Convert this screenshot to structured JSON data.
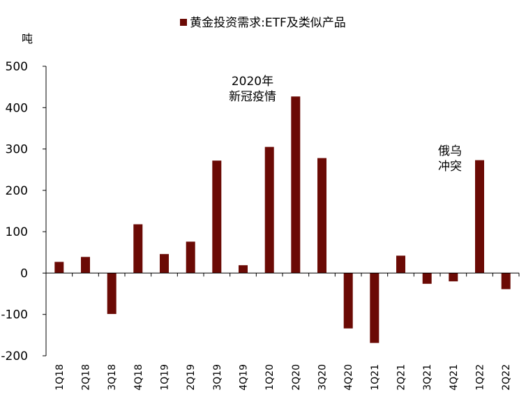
{
  "chart_data": {
    "type": "bar",
    "legend": [
      "黄金投资需求:ETF及类似产品"
    ],
    "unit_label": "吨",
    "categories": [
      "1Q18",
      "2Q18",
      "3Q18",
      "4Q18",
      "1Q19",
      "2Q19",
      "3Q19",
      "4Q19",
      "1Q20",
      "2Q20",
      "3Q20",
      "4Q20",
      "1Q21",
      "2Q21",
      "3Q21",
      "4Q21",
      "1Q22",
      "2Q22"
    ],
    "series": [
      {
        "name": "黄金投资需求:ETF及类似产品",
        "values": [
          27,
          39,
          -99,
          118,
          46,
          76,
          272,
          19,
          305,
          427,
          278,
          -134,
          -169,
          42,
          -26,
          -20,
          273,
          -39
        ]
      }
    ],
    "ylim": [
      -200,
      500
    ],
    "yticks": [
      -200,
      -100,
      0,
      100,
      200,
      300,
      400,
      500
    ],
    "ytick_labels": [
      "-200",
      "-100",
      "0",
      "100",
      "200",
      "300",
      "400",
      "500"
    ],
    "bar_color": "#6B0A05",
    "annotations": [
      {
        "lines": [
          "2020年",
          "新冠疫情"
        ]
      },
      {
        "lines": [
          "俄乌",
          "冲突"
        ]
      }
    ]
  }
}
